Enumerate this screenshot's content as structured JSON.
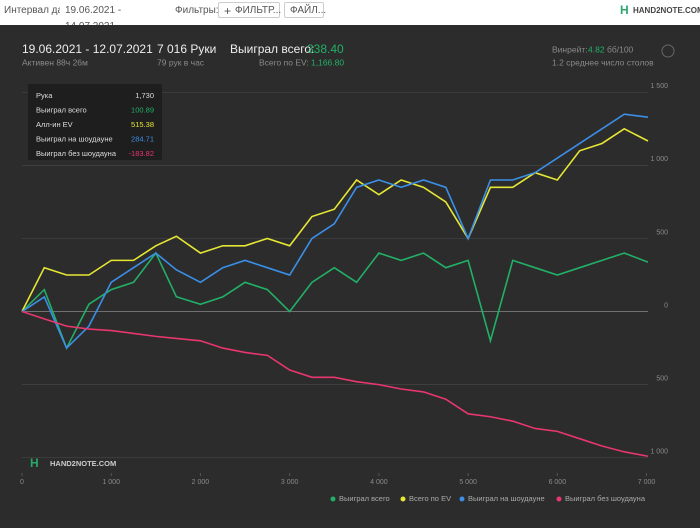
{
  "topbar": {
    "interval_label": "Интервал дат:",
    "interval_value": "19.06.2021 - 14.07.2021",
    "filters_label": "Фильтры:",
    "filter_button": "ФИЛЬТР...",
    "file_button": "ФАЙЛ...",
    "logo": "HAND2NOTE.COM"
  },
  "header": {
    "period": "19.06.2021 - 12.07.2021",
    "active": "Активен 88ч 26м",
    "hands": "7 016 Руки",
    "hands_per_hour": "79 рук в час",
    "won_label": "Выиграл всего:",
    "won_value": "338.40",
    "ev_label": "Всего по EV:",
    "ev_value": "1,166.80",
    "winrate_label": "Винрейт:",
    "winrate_value": "4.82",
    "winrate_unit": "бб/100",
    "tables": "1.2 среднее число столов"
  },
  "tooltip": {
    "rows": [
      [
        "Рука",
        "1,730"
      ],
      [
        "Выиграл всего",
        "100.89"
      ],
      [
        "Алл-ин EV",
        "515.38"
      ],
      [
        "Выиграл на шоудауне",
        "284.71"
      ],
      [
        "Выиграл без шоудауна",
        "-183.82"
      ]
    ]
  },
  "watermark": "HAND2NOTE.COM",
  "chart_data": {
    "type": "line",
    "x": [
      0,
      250,
      500,
      750,
      1000,
      1250,
      1500,
      1730,
      2000,
      2250,
      2500,
      2750,
      3000,
      3250,
      3500,
      3750,
      4000,
      4250,
      4500,
      4750,
      5000,
      5250,
      5500,
      5750,
      6000,
      6250,
      6500,
      6750,
      7016
    ],
    "series": [
      {
        "name": "Выиграл всего",
        "color": "#22b067",
        "values": [
          0,
          150,
          -250,
          50,
          150,
          200,
          400,
          101,
          50,
          100,
          200,
          150,
          0,
          200,
          300,
          200,
          400,
          350,
          400,
          300,
          350,
          -200,
          350,
          300,
          250,
          300,
          350,
          400,
          338
        ]
      },
      {
        "name": "Всего по EV",
        "color": "#e6e635",
        "values": [
          0,
          300,
          250,
          250,
          350,
          350,
          450,
          515,
          400,
          450,
          450,
          500,
          450,
          650,
          700,
          900,
          800,
          900,
          850,
          750,
          500,
          850,
          850,
          950,
          900,
          1100,
          1150,
          1250,
          1167
        ]
      },
      {
        "name": "Выиграл на шоудауне",
        "color": "#3b8fe6",
        "values": [
          0,
          100,
          -250,
          -100,
          200,
          300,
          400,
          285,
          200,
          300,
          350,
          300,
          250,
          500,
          600,
          850,
          900,
          850,
          900,
          850,
          500,
          900,
          900,
          950,
          1050,
          1150,
          1250,
          1350,
          1330
        ]
      },
      {
        "name": "Выиграл без шоудауна",
        "color": "#e8366e",
        "values": [
          0,
          -50,
          -100,
          -120,
          -130,
          -150,
          -170,
          -184,
          -200,
          -250,
          -280,
          -300,
          -400,
          -450,
          -450,
          -480,
          -500,
          -530,
          -550,
          -600,
          -700,
          -720,
          -750,
          -800,
          -820,
          -870,
          -920,
          -960,
          -990
        ]
      }
    ],
    "xlim": [
      0,
      7016
    ],
    "ylim": [
      -1050,
      1550
    ],
    "xticks": [
      0,
      {
        "value": 1000,
        "label": "1 000"
      },
      {
        "value": 2000,
        "label": "2 000"
      },
      {
        "value": 3000,
        "label": "3 000"
      },
      {
        "value": 4000,
        "label": "4 000"
      },
      {
        "value": 5000,
        "label": "5 000"
      },
      {
        "value": 6000,
        "label": "6 000"
      },
      {
        "value": 7000,
        "label": "7 000"
      }
    ],
    "yticks": [
      {
        "value": 1500,
        "label": "1 500"
      },
      {
        "value": 1000,
        "label": "1 000"
      },
      500,
      0,
      {
        "value": -500,
        "label": "500"
      },
      {
        "value": -1000,
        "label": "1 000"
      }
    ],
    "grid": true,
    "legend": "bottom-right"
  }
}
